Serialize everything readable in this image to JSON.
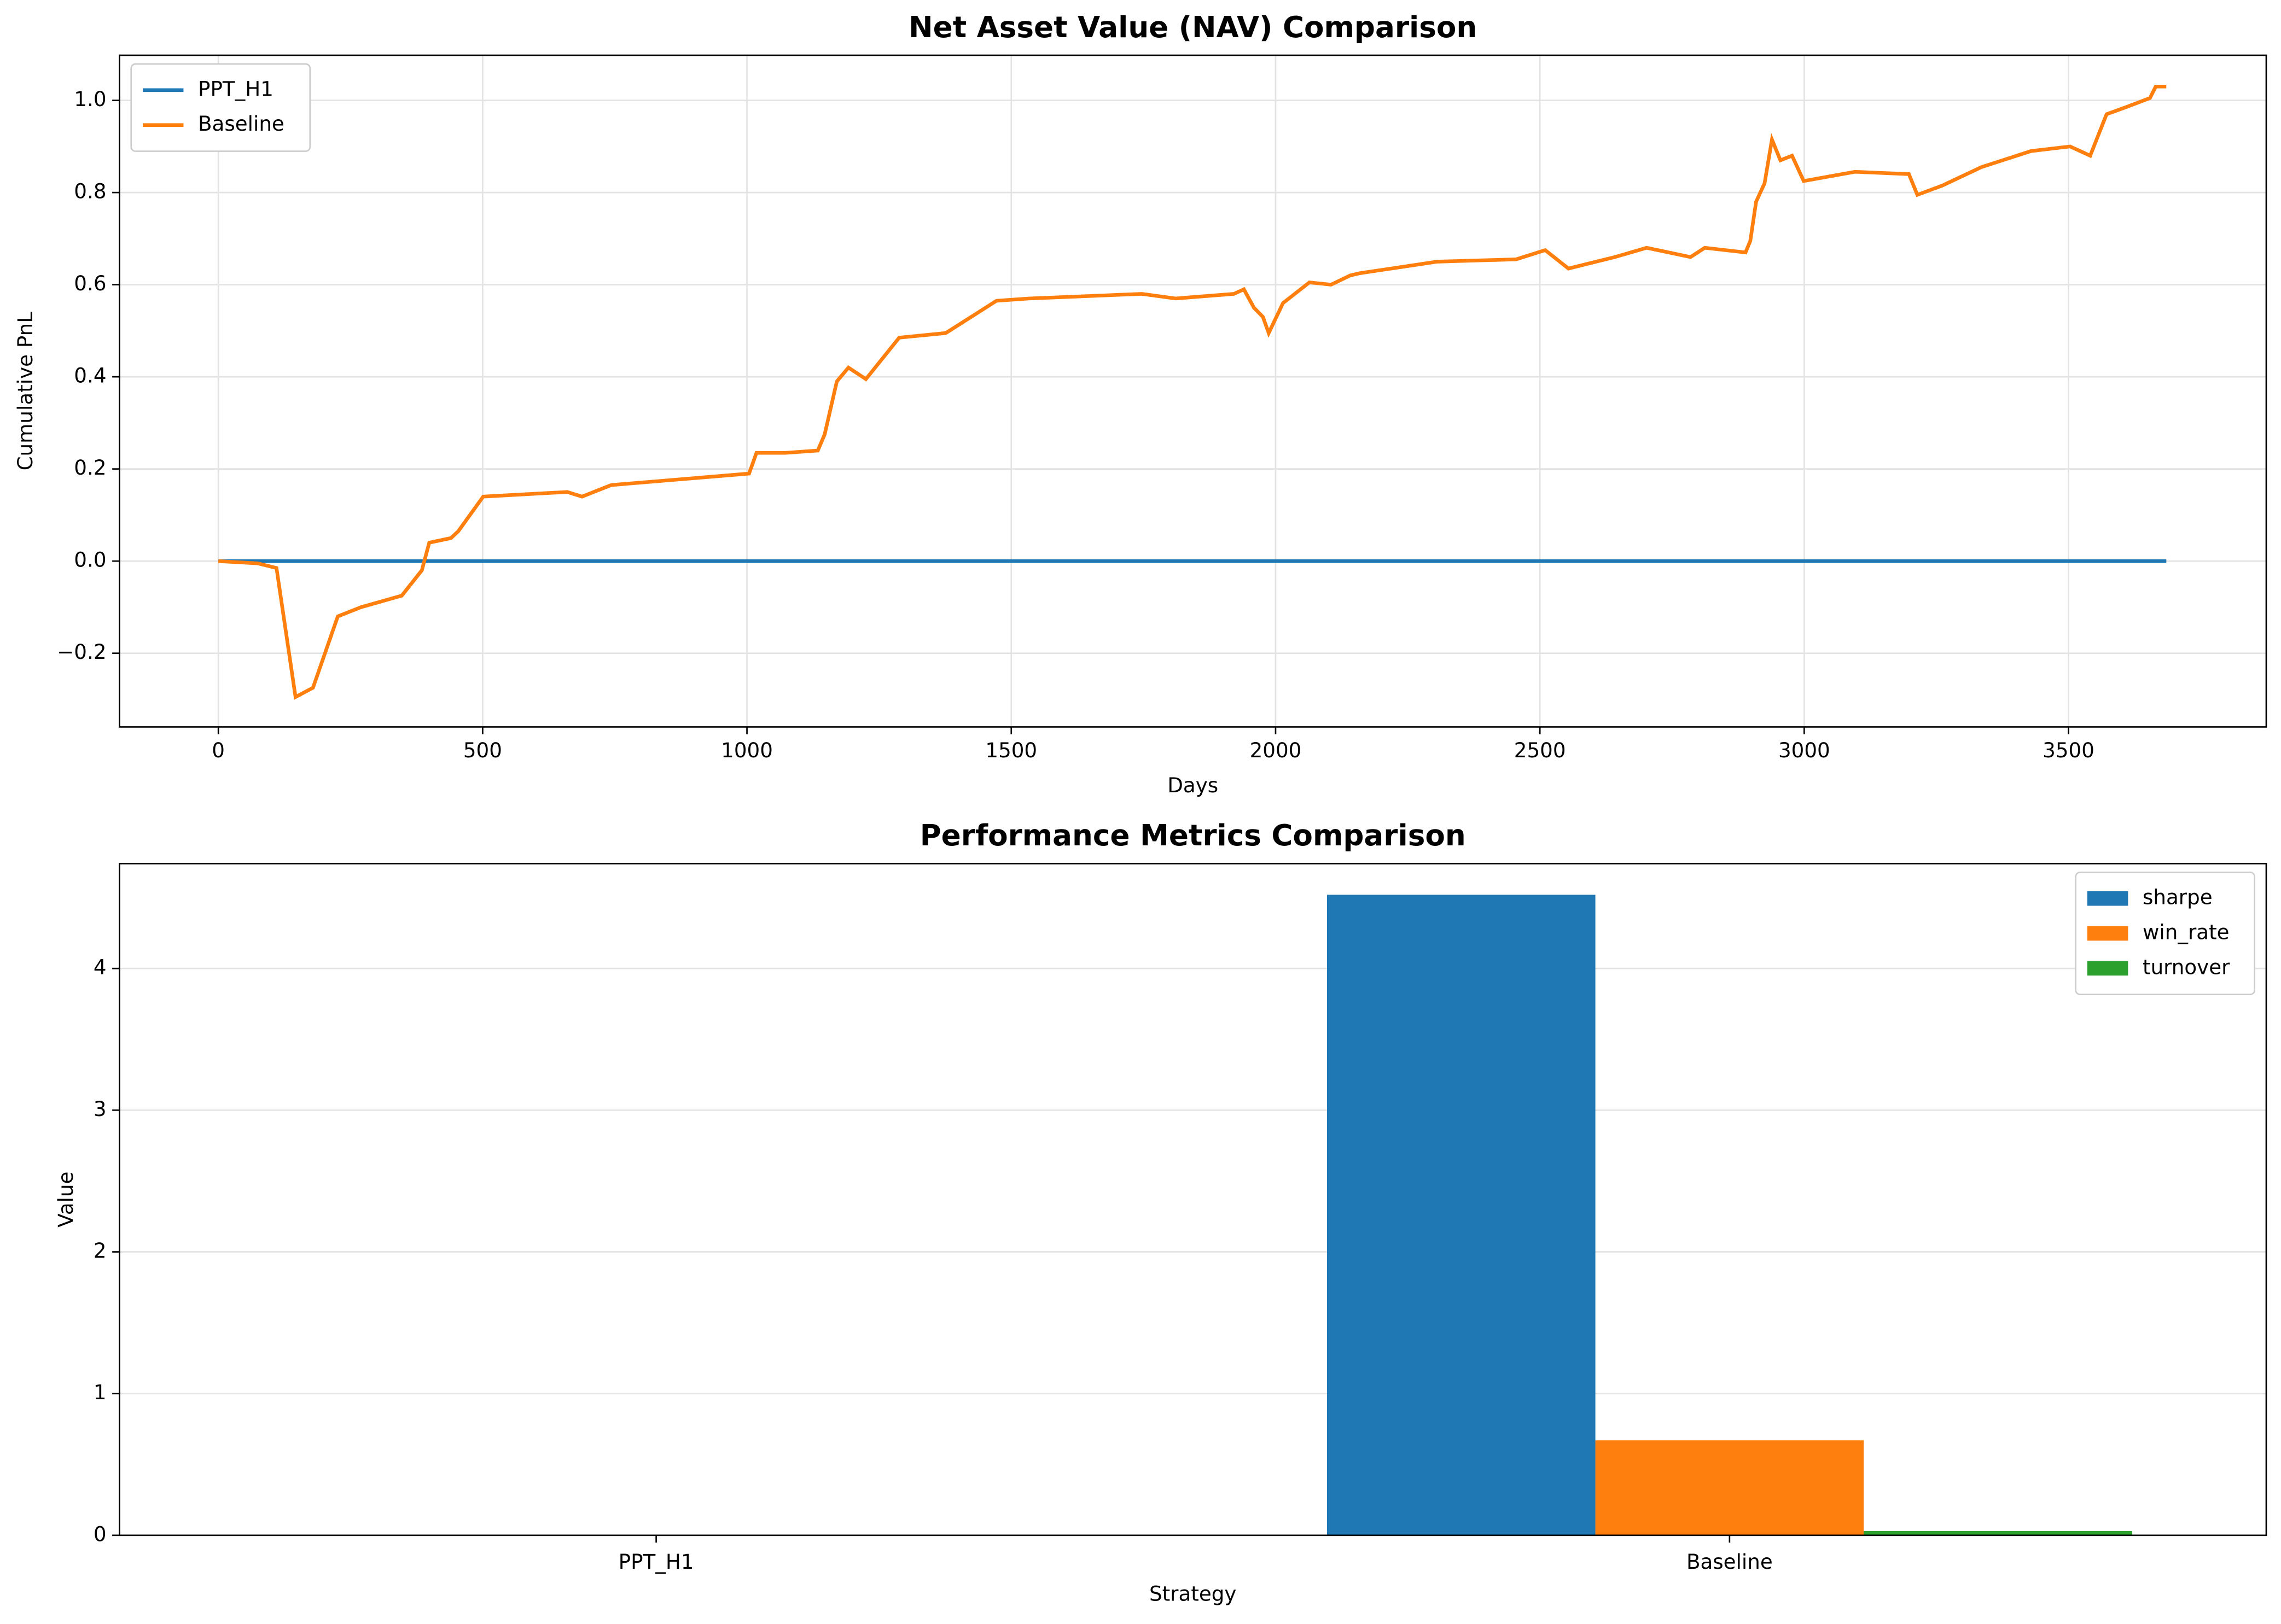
{
  "chart_data": [
    {
      "type": "line",
      "title": "Net Asset Value (NAV) Comparison",
      "xlabel": "Days",
      "ylabel": "Cumulative PnL",
      "series": [
        {
          "name": "PPT_H1",
          "color": "#1f77b4",
          "x": [
            0,
            3685
          ],
          "values": [
            0,
            0
          ]
        },
        {
          "name": "Baseline",
          "color": "#ff7f0e",
          "x": [
            0,
            75,
            110,
            146,
            179,
            226,
            270,
            347,
            385,
            399,
            440,
            454,
            501,
            660,
            688,
            743,
            1004,
            1018,
            1073,
            1134,
            1147,
            1170,
            1192,
            1225,
            1288,
            1376,
            1472,
            1533,
            1747,
            1811,
            1921,
            1940,
            1959,
            1976,
            1987,
            2014,
            2064,
            2105,
            2141,
            2160,
            2306,
            2455,
            2510,
            2554,
            2642,
            2702,
            2785,
            2812,
            2889,
            2898,
            2909,
            2925,
            2939,
            2955,
            2977,
            2999,
            3096,
            3198,
            3214,
            3261,
            3335,
            3429,
            3503,
            3541,
            3572,
            3608,
            3654,
            3665,
            3685
          ],
          "values": [
            0,
            -0.005,
            -0.015,
            -0.295,
            -0.275,
            -0.12,
            -0.1,
            -0.075,
            -0.02,
            0.04,
            0.05,
            0.065,
            0.14,
            0.15,
            0.14,
            0.165,
            0.19,
            0.235,
            0.235,
            0.24,
            0.275,
            0.39,
            0.42,
            0.395,
            0.485,
            0.495,
            0.565,
            0.57,
            0.58,
            0.57,
            0.58,
            0.59,
            0.55,
            0.53,
            0.495,
            0.56,
            0.605,
            0.6,
            0.62,
            0.625,
            0.65,
            0.655,
            0.675,
            0.635,
            0.66,
            0.68,
            0.66,
            0.68,
            0.67,
            0.695,
            0.78,
            0.82,
            0.915,
            0.87,
            0.88,
            0.825,
            0.845,
            0.84,
            0.795,
            0.815,
            0.855,
            0.89,
            0.9,
            0.88,
            0.97,
            0.985,
            1.005,
            1.03,
            1.03
          ]
        }
      ],
      "xlim": [
        -187,
        3874
      ],
      "xticks": [
        0,
        500,
        1000,
        1500,
        2000,
        2500,
        3000,
        3500
      ],
      "ylim": [
        -0.36,
        1.098
      ],
      "yticks": [
        {
          "value": -0.2,
          "label": "−0.2"
        },
        {
          "value": 0,
          "label": "0.0"
        },
        0.2,
        0.4,
        0.6,
        0.8,
        {
          "value": 1,
          "label": "1.0"
        }
      ],
      "grid": true,
      "legend": "upper-left"
    },
    {
      "type": "bar",
      "title": "Performance Metrics Comparison",
      "xlabel": "Strategy",
      "ylabel": "Value",
      "categories": [
        "PPT_H1",
        "Baseline"
      ],
      "series": [
        {
          "name": "sharpe",
          "color": "#1f77b4",
          "values": [
            0,
            4.52
          ]
        },
        {
          "name": "win_rate",
          "color": "#ff7f0e",
          "values": [
            0,
            0.67
          ]
        },
        {
          "name": "turnover",
          "color": "#2ca02c",
          "values": [
            0,
            0.03
          ]
        }
      ],
      "ylim": [
        0,
        4.74
      ],
      "yticks": [
        0,
        1,
        2,
        3,
        4
      ],
      "grid": true,
      "legend": "upper-right"
    }
  ]
}
